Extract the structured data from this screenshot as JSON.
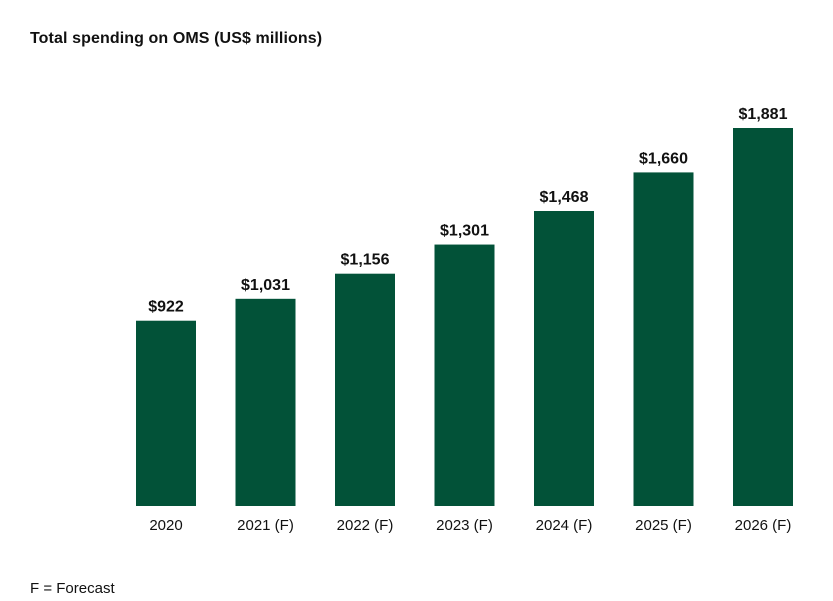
{
  "title": "Total spending on OMS (US$ millions)",
  "footnote": "F = Forecast",
  "colors": {
    "bar": "#025238",
    "text": "#111111",
    "baseline": "#c8c8c8"
  },
  "chart_data": {
    "type": "bar",
    "title": "Total spending on OMS (US$ millions)",
    "xlabel": "",
    "ylabel": "",
    "categories": [
      "2020",
      "2021 (F)",
      "2022 (F)",
      "2023 (F)",
      "2024 (F)",
      "2025 (F)",
      "2026 (F)"
    ],
    "values": [
      922,
      1031,
      1156,
      1301,
      1468,
      1660,
      1881
    ],
    "data_labels": [
      "$922",
      "$1,031",
      "$1,156",
      "$1,301",
      "$1,468",
      "$1,660",
      "$1,881"
    ],
    "ylim": [
      0,
      2000
    ],
    "grid": false,
    "legend": "none"
  }
}
